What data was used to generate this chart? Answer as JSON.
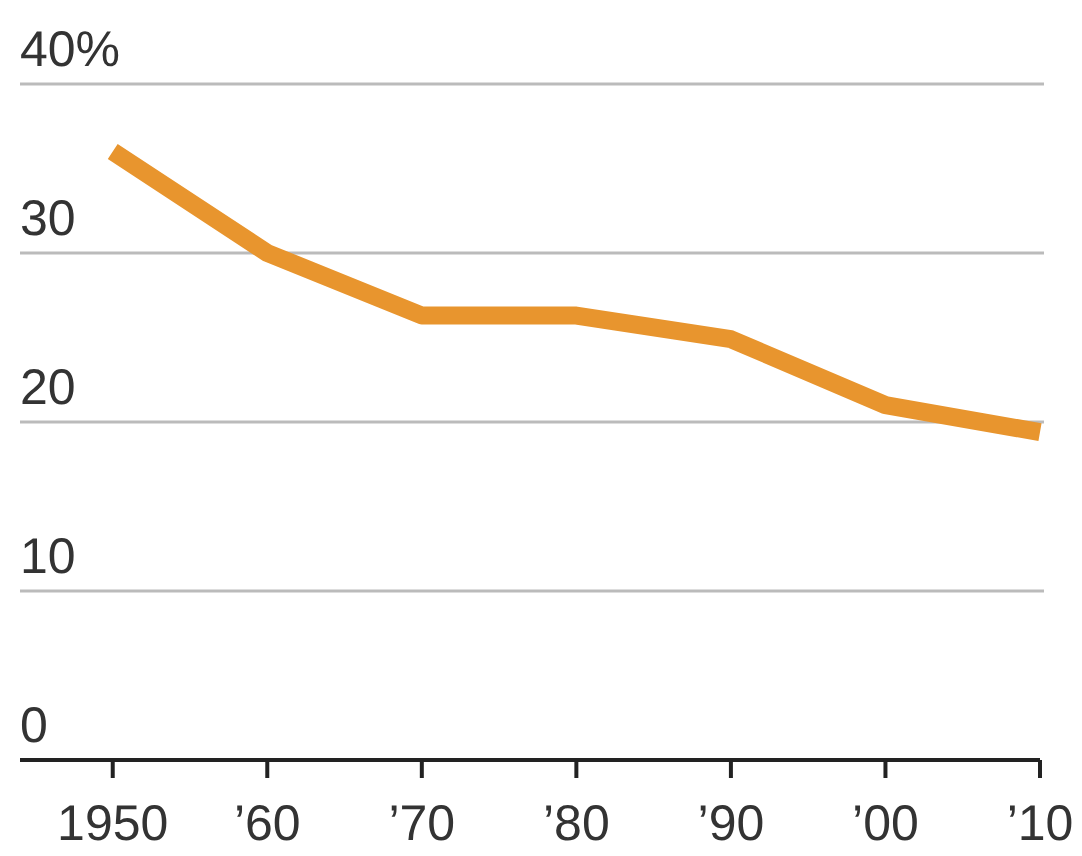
{
  "chart_data": {
    "type": "line",
    "x": [
      1950,
      1960,
      1970,
      1980,
      1990,
      2000,
      2010
    ],
    "series": [
      {
        "color": "#e8952e",
        "values": [
          36,
          30,
          26.3,
          26.3,
          24.9,
          21,
          19.4
        ]
      }
    ],
    "xlim": [
      1944,
      2010
    ],
    "xticks": [
      1950,
      {
        "value": 1960,
        "label": "’60"
      },
      {
        "value": 1970,
        "label": "’70"
      },
      {
        "value": 1980,
        "label": "’80"
      },
      {
        "value": 1990,
        "label": "’90"
      },
      {
        "value": 2000,
        "label": "’00"
      },
      {
        "value": 2010,
        "label": "’10"
      }
    ],
    "ylim": [
      0,
      40
    ],
    "yticks": [
      0,
      10,
      20,
      30,
      {
        "value": 40,
        "label": "40%"
      }
    ],
    "grid": "y",
    "marker": "none",
    "line_style": "solid"
  }
}
